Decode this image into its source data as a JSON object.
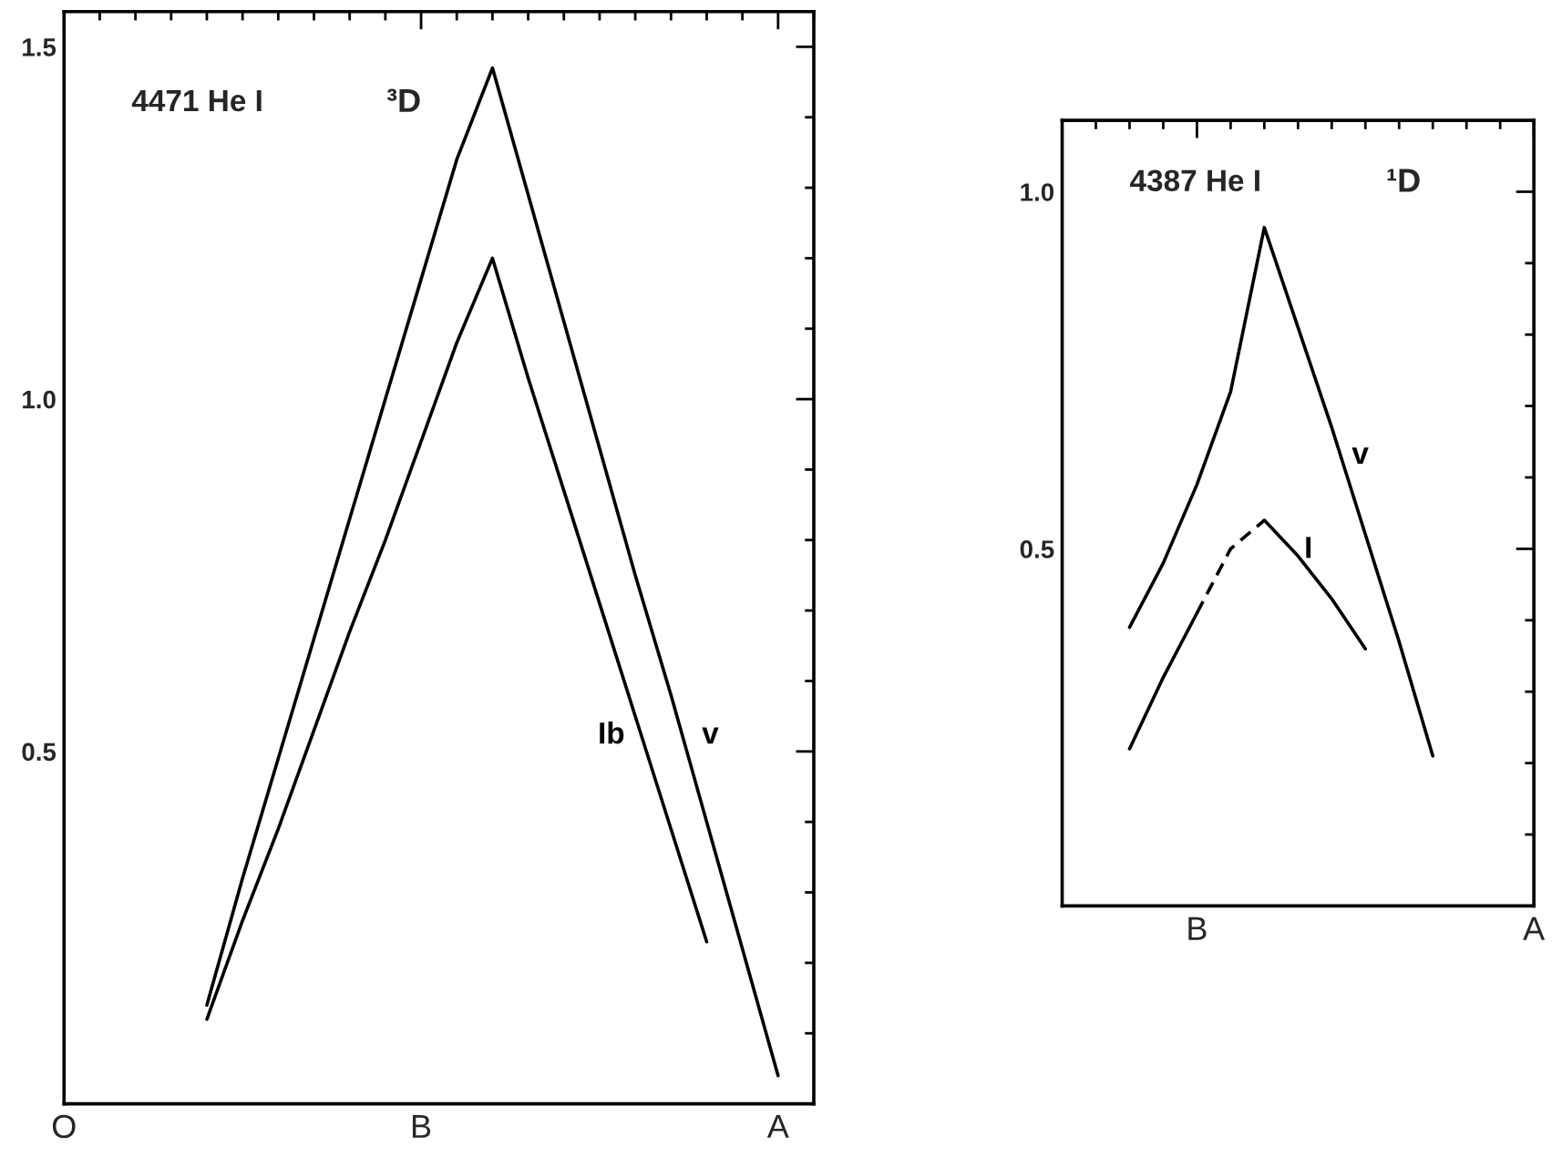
{
  "chart_data": [
    {
      "type": "line",
      "title": "4471 He I",
      "subtitle": "³D",
      "categories": [
        "O",
        null,
        null,
        null,
        null,
        null,
        null,
        null,
        null,
        null,
        "B",
        null,
        null,
        null,
        null,
        null,
        null,
        null,
        null,
        null,
        "A",
        null
      ],
      "ylim": [
        0,
        1.55
      ],
      "yticks": [
        {
          "value": 0.1,
          "label": null
        },
        {
          "value": 0.2,
          "label": null
        },
        {
          "value": 0.3,
          "label": null
        },
        {
          "value": 0.4,
          "label": null
        },
        {
          "value": 0.5,
          "label": "0.5"
        },
        {
          "value": 0.6,
          "label": null
        },
        {
          "value": 0.7,
          "label": null
        },
        {
          "value": 0.8,
          "label": null
        },
        {
          "value": 0.9,
          "label": null
        },
        {
          "value": 1,
          "label": "1.0"
        },
        {
          "value": 1.1,
          "label": null
        },
        {
          "value": 1.2,
          "label": null
        },
        {
          "value": 1.3,
          "label": null
        },
        {
          "value": 1.4,
          "label": null
        },
        {
          "value": 1.5,
          "label": "1.5"
        }
      ],
      "series": [
        {
          "name": "Ib",
          "color": "#000000",
          "values": [
            null,
            null,
            null,
            null,
            0.12,
            0.26,
            0.39,
            0.53,
            0.67,
            0.8,
            0.94,
            1.08,
            1.2,
            1.03,
            0.87,
            0.71,
            0.55,
            0.39,
            0.23,
            null,
            null,
            null
          ]
        },
        {
          "name": "v",
          "color": "#000000",
          "values": [
            null,
            null,
            null,
            null,
            0.14,
            0.32,
            0.49,
            0.66,
            0.83,
            1.0,
            1.17,
            1.34,
            1.47,
            1.29,
            1.11,
            0.93,
            0.75,
            0.58,
            0.4,
            0.22,
            0.04,
            null
          ]
        }
      ]
    },
    {
      "type": "line",
      "title": "4387 He I",
      "subtitle": "¹D",
      "categories": [
        null,
        null,
        null,
        null,
        "B",
        null,
        null,
        null,
        null,
        null,
        null,
        null,
        null,
        null,
        "A"
      ],
      "ylim": [
        0,
        1.1
      ],
      "yticks": [
        {
          "value": 0.1,
          "label": null
        },
        {
          "value": 0.2,
          "label": null
        },
        {
          "value": 0.3,
          "label": null
        },
        {
          "value": 0.4,
          "label": null
        },
        {
          "value": 0.5,
          "label": "0.5"
        },
        {
          "value": 0.6,
          "label": null
        },
        {
          "value": 0.7,
          "label": null
        },
        {
          "value": 0.8,
          "label": null
        },
        {
          "value": 0.9,
          "label": null
        },
        {
          "value": 1,
          "label": "1.0"
        }
      ],
      "series": [
        {
          "color": "#000000",
          "line_style": "dashed",
          "values": [
            null,
            null,
            null,
            null,
            0.41,
            0.5,
            0.54,
            null,
            null,
            null,
            null,
            null,
            null,
            null,
            null
          ]
        },
        {
          "name": "v",
          "color": "#000000",
          "values": [
            null,
            null,
            0.39,
            0.48,
            0.59,
            0.72,
            0.95,
            0.81,
            0.67,
            0.52,
            0.37,
            0.21,
            null,
            null,
            null
          ]
        },
        {
          "name": "I",
          "color": "#000000",
          "values": [
            null,
            null,
            0.22,
            0.32,
            0.41,
            null,
            0.54,
            0.49,
            0.43,
            0.36,
            null,
            null,
            null,
            null,
            null
          ]
        }
      ]
    }
  ]
}
